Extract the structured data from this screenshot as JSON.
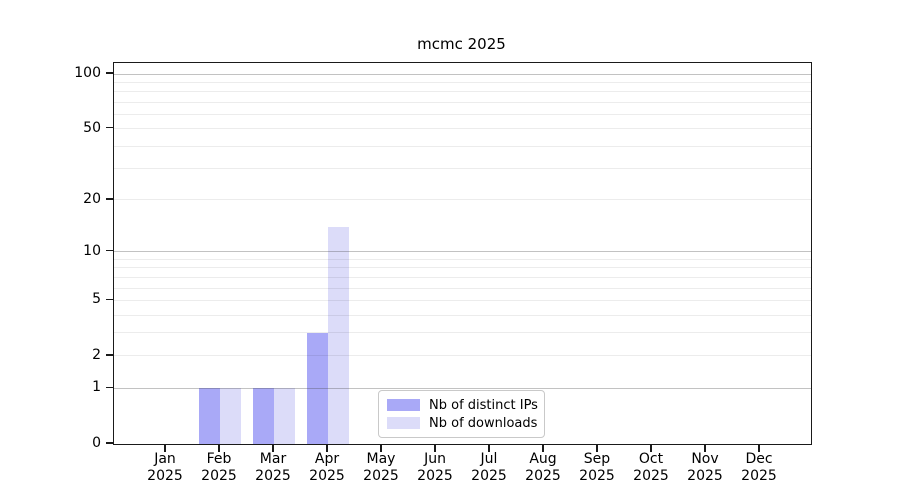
{
  "chart_data": {
    "type": "bar",
    "title": "mcmc 2025",
    "xlabel": "",
    "ylabel": "",
    "x_tick_labels": [
      [
        "Jan",
        "2025"
      ],
      [
        "Feb",
        "2025"
      ],
      [
        "Mar",
        "2025"
      ],
      [
        "Apr",
        "2025"
      ],
      [
        "May",
        "2025"
      ],
      [
        "Jun",
        "2025"
      ],
      [
        "Jul",
        "2025"
      ],
      [
        "Aug",
        "2025"
      ],
      [
        "Sep",
        "2025"
      ],
      [
        "Oct",
        "2025"
      ],
      [
        "Nov",
        "2025"
      ],
      [
        "Dec",
        "2025"
      ]
    ],
    "series": [
      {
        "name": "Nb of distinct IPs",
        "color": "#a9a9f7",
        "values": [
          0,
          1,
          1,
          3,
          0,
          0,
          0,
          0,
          0,
          0,
          0,
          0
        ]
      },
      {
        "name": "Nb of downloads",
        "color": "#dcdcf9",
        "values": [
          0,
          1,
          1,
          14,
          0,
          0,
          0,
          0,
          0,
          0,
          0,
          0
        ]
      }
    ],
    "y_scale": "log10(1+v)",
    "ylim": [
      0,
      115
    ],
    "y_tick_values": [
      0,
      1,
      2,
      5,
      10,
      20,
      50,
      100
    ],
    "y_major_gridlines": [
      1,
      10,
      100
    ],
    "y_minor_gridlines": [
      2,
      3,
      4,
      5,
      6,
      7,
      8,
      9,
      20,
      30,
      40,
      50,
      60,
      70,
      80,
      90
    ],
    "grid": true,
    "legend_position": "lower center"
  }
}
